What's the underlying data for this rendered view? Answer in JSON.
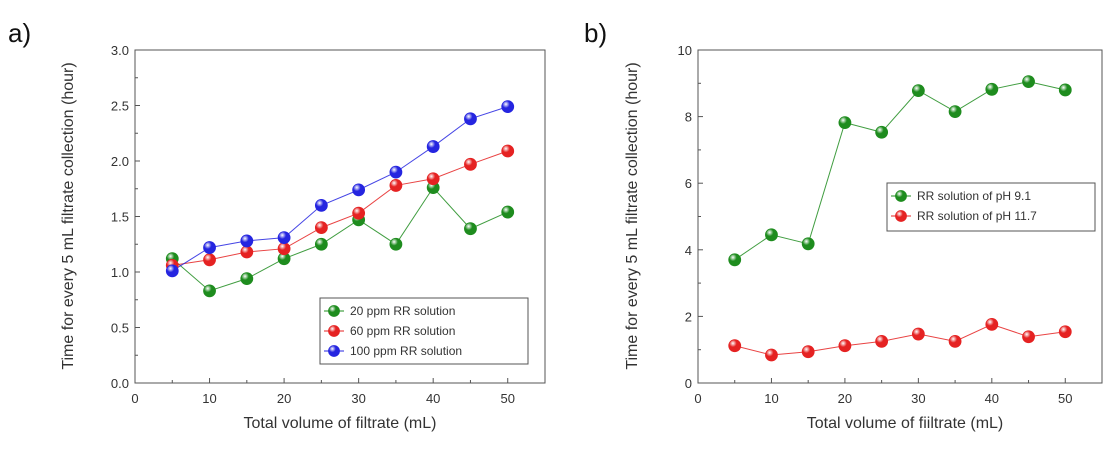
{
  "chart_data": [
    {
      "type": "line",
      "panel_label": "a)",
      "xlabel": "Total volume of filtrate (mL)",
      "ylabel": "Time for every 5 mL filtrate collection (hour)",
      "xlim": [
        0,
        55
      ],
      "ylim": [
        0,
        3.0
      ],
      "xticks": [
        "0",
        "10",
        "20",
        "30",
        "40",
        "50"
      ],
      "yticks": [
        "0.0",
        "0.5",
        "1.0",
        "1.5",
        "2.0",
        "2.5",
        "3.0"
      ],
      "legend_position": "bottom-right",
      "x": [
        5,
        10,
        15,
        20,
        25,
        30,
        35,
        40,
        45,
        50
      ],
      "series": [
        {
          "name": "20 ppm RR solution",
          "color": "#1e8c1e",
          "values": [
            1.12,
            0.83,
            0.94,
            1.12,
            1.25,
            1.47,
            1.25,
            1.76,
            1.39,
            1.54
          ]
        },
        {
          "name": "60 ppm RR solution",
          "color": "#e52222",
          "values": [
            1.06,
            1.11,
            1.18,
            1.21,
            1.4,
            1.53,
            1.78,
            1.84,
            1.97,
            2.09
          ]
        },
        {
          "name": "100 ppm RR solution",
          "color": "#2525e0",
          "values": [
            1.01,
            1.22,
            1.28,
            1.31,
            1.6,
            1.74,
            1.9,
            2.13,
            2.38,
            2.49
          ]
        }
      ]
    },
    {
      "type": "line",
      "panel_label": "b)",
      "xlabel": "Total volume of fiiltrate (mL)",
      "ylabel": "Time for every 5 mL filtrate collection (hour)",
      "xlim": [
        0,
        55
      ],
      "ylim": [
        0,
        10
      ],
      "xticks": [
        "0",
        "10",
        "20",
        "30",
        "40",
        "50"
      ],
      "yticks": [
        "0",
        "2",
        "4",
        "6",
        "8",
        "10"
      ],
      "legend_position": "middle-right",
      "x": [
        5,
        10,
        15,
        20,
        25,
        30,
        35,
        40,
        45,
        50
      ],
      "series": [
        {
          "name": "RR solution of pH 9.1",
          "color": "#1e8c1e",
          "values": [
            3.7,
            4.45,
            4.18,
            7.82,
            7.53,
            8.78,
            8.15,
            8.82,
            9.05,
            8.8
          ]
        },
        {
          "name": "RR solution of pH 11.7",
          "color": "#e52222",
          "values": [
            1.12,
            0.84,
            0.94,
            1.12,
            1.25,
            1.47,
            1.25,
            1.76,
            1.39,
            1.54
          ]
        }
      ]
    }
  ]
}
